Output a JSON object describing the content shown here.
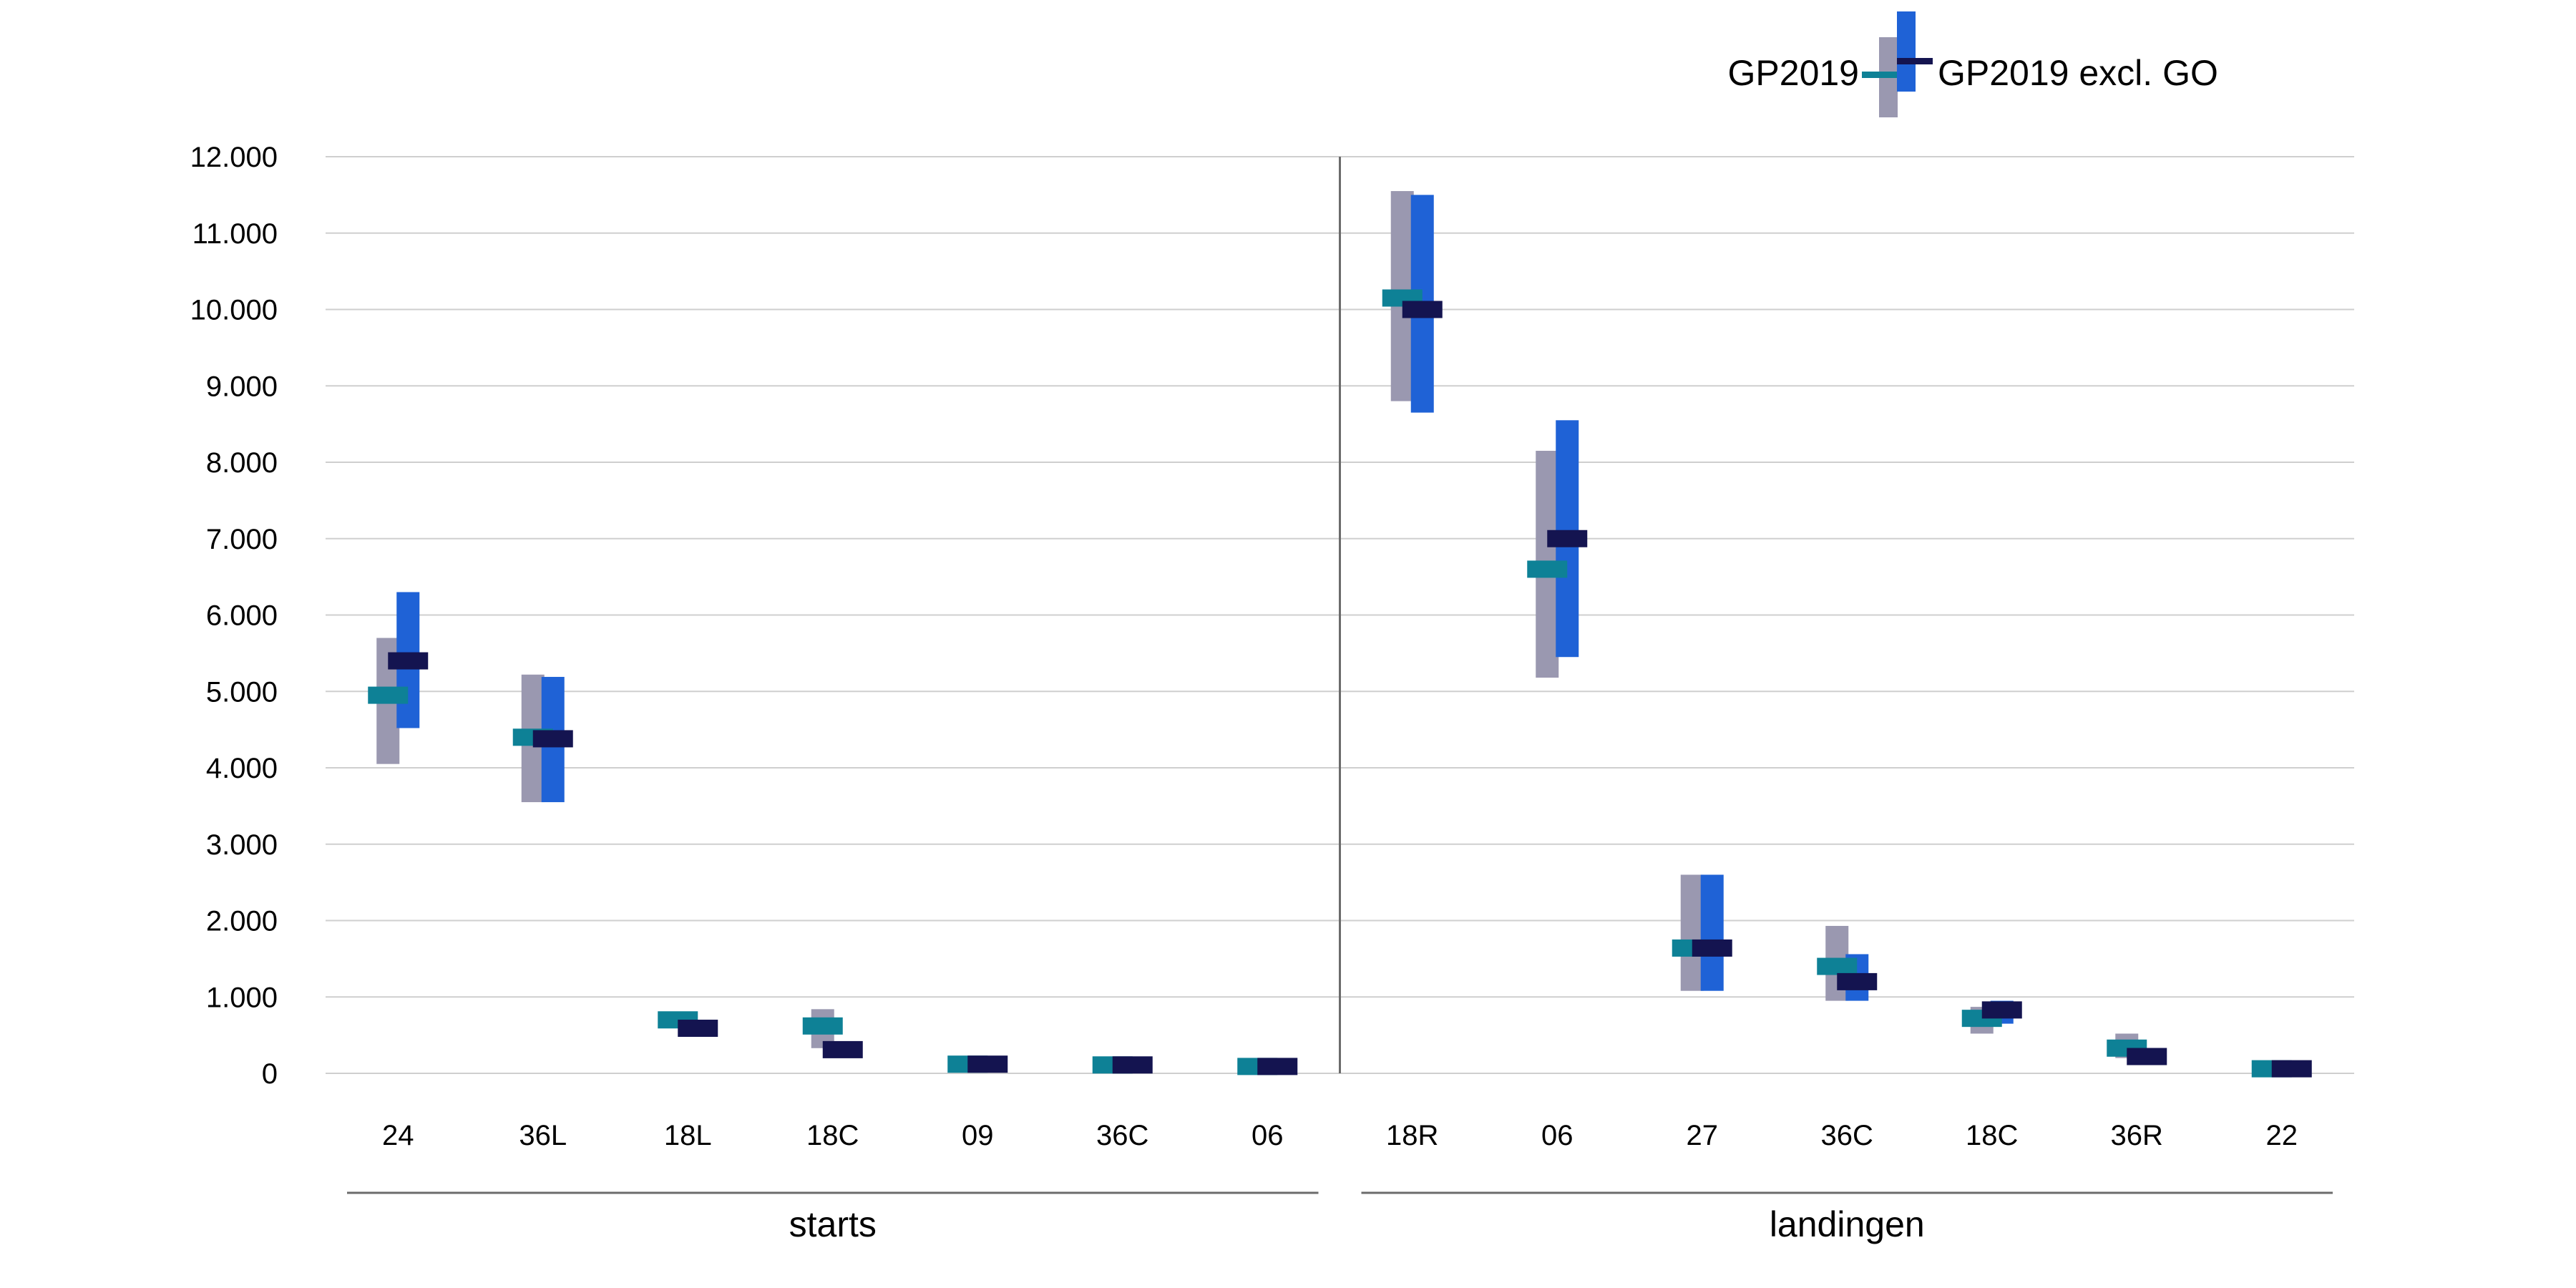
{
  "chart_data": {
    "type": "range-bar",
    "title": "",
    "xlabel": "",
    "ylabel": "",
    "ylim": [
      0,
      12000
    ],
    "yticks": [
      0,
      1000,
      2000,
      3000,
      4000,
      5000,
      6000,
      7000,
      8000,
      9000,
      10000,
      11000,
      12000
    ],
    "ytick_labels": [
      "0",
      "1.000",
      "2.000",
      "3.000",
      "4.000",
      "5.000",
      "6.000",
      "7.000",
      "8.000",
      "9.000",
      "10.000",
      "11.000",
      "12.000"
    ],
    "grid": true,
    "legend_position": "top-right",
    "groups": [
      {
        "label": "starts",
        "categories": [
          "24",
          "36L",
          "18L",
          "18C",
          "09",
          "36C",
          "06"
        ]
      },
      {
        "label": "landingen",
        "categories": [
          "18R",
          "06",
          "27",
          "36C",
          "18C",
          "36R",
          "22"
        ]
      }
    ],
    "series": [
      {
        "name": "GP2019",
        "bar_color": "#9a98b0",
        "marker_color": "#0e8196",
        "values": [
          {
            "min": 4050,
            "max": 5700,
            "mean": 4950
          },
          {
            "min": 3550,
            "max": 5220,
            "mean": 4400
          },
          {
            "min": 600,
            "max": 800,
            "mean": 700
          },
          {
            "min": 330,
            "max": 840,
            "mean": 620
          },
          {
            "min": 50,
            "max": 180,
            "mean": 120
          },
          {
            "min": 50,
            "max": 170,
            "mean": 110
          },
          {
            "min": 40,
            "max": 140,
            "mean": 90
          },
          {
            "min": 8800,
            "max": 11550,
            "mean": 10150
          },
          {
            "min": 5180,
            "max": 8150,
            "mean": 6600
          },
          {
            "min": 1080,
            "max": 2600,
            "mean": 1640
          },
          {
            "min": 950,
            "max": 1930,
            "mean": 1400
          },
          {
            "min": 520,
            "max": 870,
            "mean": 720
          },
          {
            "min": 200,
            "max": 520,
            "mean": 330
          },
          {
            "min": 20,
            "max": 100,
            "mean": 60
          }
        ]
      },
      {
        "name": "GP2019 excl. GO",
        "bar_color": "#1f62d6",
        "marker_color": "#141450",
        "values": [
          {
            "min": 4520,
            "max": 6300,
            "mean": 5400
          },
          {
            "min": 3550,
            "max": 5190,
            "mean": 4380
          },
          {
            "min": 500,
            "max": 700,
            "mean": 590
          },
          {
            "min": 230,
            "max": 400,
            "mean": 310
          },
          {
            "min": 40,
            "max": 180,
            "mean": 120
          },
          {
            "min": 40,
            "max": 170,
            "mean": 110
          },
          {
            "min": 30,
            "max": 140,
            "mean": 90
          },
          {
            "min": 8650,
            "max": 11500,
            "mean": 10000
          },
          {
            "min": 5450,
            "max": 8550,
            "mean": 7000
          },
          {
            "min": 1080,
            "max": 2600,
            "mean": 1640
          },
          {
            "min": 950,
            "max": 1560,
            "mean": 1200
          },
          {
            "min": 650,
            "max": 950,
            "mean": 830
          },
          {
            "min": 120,
            "max": 300,
            "mean": 220
          },
          {
            "min": 20,
            "max": 100,
            "mean": 60
          }
        ]
      }
    ]
  }
}
